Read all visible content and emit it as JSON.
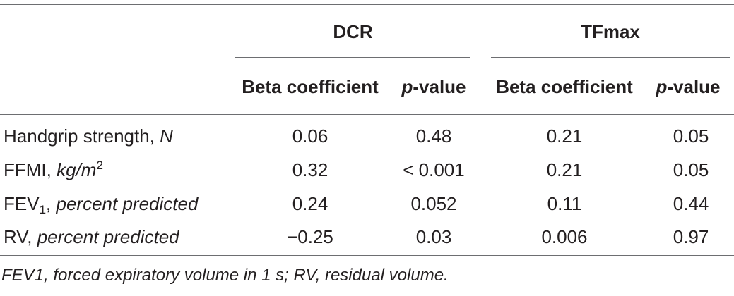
{
  "table": {
    "groups": [
      {
        "label": "DCR"
      },
      {
        "label": "TFmax"
      }
    ],
    "columns": {
      "beta": "Beta coefficient",
      "p_italic": "p",
      "p_suffix": "-value"
    },
    "rows": [
      {
        "label": "Handgrip strength, ",
        "unit": "N",
        "dcr_beta": "0.06",
        "dcr_p": "0.48",
        "tf_beta": "0.21",
        "tf_p": "0.05"
      },
      {
        "label": "FFMI, ",
        "unit_main": "kg/m",
        "unit_sup": "2",
        "dcr_beta": "0.32",
        "dcr_p": "< 0.001",
        "tf_beta": "0.21",
        "tf_p": "0.05"
      },
      {
        "label_main": "FEV",
        "label_sub": "1",
        "label_tail": ", ",
        "unit": "percent predicted",
        "dcr_beta": "0.24",
        "dcr_p": "0.052",
        "tf_beta": "0.11",
        "tf_p": "0.44"
      },
      {
        "label": "RV, ",
        "unit": "percent predicted",
        "dcr_beta": "−0.25",
        "dcr_p": "0.03",
        "tf_beta": "0.006",
        "tf_p": "0.97"
      }
    ],
    "footnote": "FEV1, forced expiratory volume in 1 s; RV, residual volume."
  }
}
